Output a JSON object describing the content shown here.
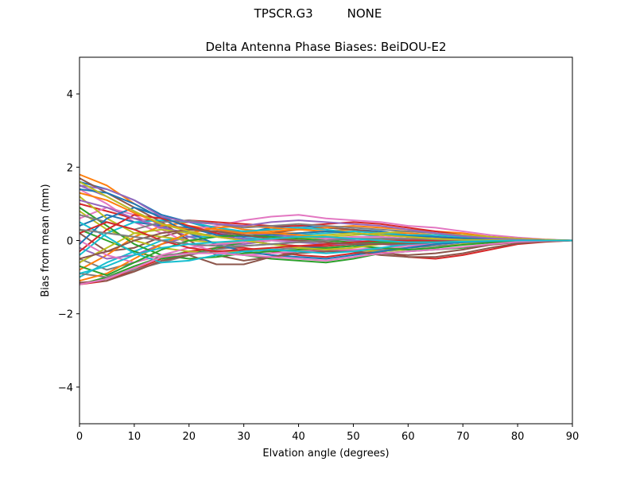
{
  "figure": {
    "suptitle": "TPSCR.G3         NONE"
  },
  "chart_data": {
    "type": "line",
    "title": "Delta Antenna Phase Biases: BeiDOU-E2",
    "xlabel": "Elvation angle (degrees)",
    "ylabel": "Bias from mean (mm)",
    "xlim": [
      0,
      90
    ],
    "ylim": [
      -5,
      5
    ],
    "xticks": [
      "0",
      "10",
      "20",
      "30",
      "40",
      "50",
      "60",
      "70",
      "80",
      "90"
    ],
    "yticks": [
      "−4",
      "−2",
      "0",
      "2",
      "4"
    ],
    "ytick_values": [
      -4,
      -2,
      0,
      2,
      4
    ],
    "grid": false,
    "legend": "none",
    "x": [
      0,
      5,
      10,
      15,
      20,
      25,
      30,
      35,
      40,
      45,
      50,
      55,
      60,
      65,
      70,
      75,
      80,
      85,
      90
    ],
    "series": [
      {
        "color": "#1f77b4",
        "values": [
          1.6,
          1.4,
          1.1,
          0.7,
          0.5,
          0.3,
          0.2,
          0.35,
          0.4,
          0.35,
          0.3,
          0.25,
          0.15,
          0.1,
          0.05,
          0.03,
          0.02,
          0.01,
          0.0
        ]
      },
      {
        "color": "#ff7f0e",
        "values": [
          1.8,
          1.5,
          1.0,
          0.6,
          0.4,
          0.3,
          0.25,
          0.2,
          0.2,
          0.25,
          0.3,
          0.2,
          0.2,
          0.15,
          0.1,
          0.05,
          0.03,
          0.01,
          0.0
        ]
      },
      {
        "color": "#2ca02c",
        "values": [
          -1.2,
          -1.0,
          -0.7,
          -0.45,
          -0.3,
          -0.3,
          -0.4,
          -0.5,
          -0.55,
          -0.6,
          -0.5,
          -0.35,
          -0.3,
          -0.25,
          -0.2,
          -0.1,
          -0.05,
          -0.02,
          0.0
        ]
      },
      {
        "color": "#d62728",
        "values": [
          -1.2,
          -1.1,
          -0.8,
          -0.5,
          -0.3,
          -0.2,
          -0.2,
          -0.3,
          -0.4,
          -0.45,
          -0.35,
          -0.3,
          -0.45,
          -0.5,
          -0.4,
          -0.25,
          -0.1,
          -0.04,
          0.0
        ]
      },
      {
        "color": "#9467bd",
        "values": [
          1.5,
          1.2,
          0.8,
          0.4,
          0.1,
          -0.1,
          -0.1,
          0.0,
          0.1,
          0.1,
          0.0,
          -0.1,
          -0.15,
          -0.1,
          -0.05,
          -0.02,
          0.0,
          0.0,
          0.0
        ]
      },
      {
        "color": "#8c564b",
        "values": [
          0.2,
          -0.3,
          -0.2,
          0.1,
          0.3,
          0.2,
          0.1,
          0.2,
          0.3,
          0.35,
          0.3,
          0.2,
          0.1,
          0.05,
          0.0,
          0.0,
          0.0,
          0.0,
          0.0
        ]
      },
      {
        "color": "#e377c2",
        "values": [
          1.4,
          1.0,
          0.5,
          0.2,
          0.3,
          0.4,
          0.55,
          0.65,
          0.7,
          0.6,
          0.55,
          0.5,
          0.4,
          0.35,
          0.25,
          0.15,
          0.08,
          0.03,
          0.0
        ]
      },
      {
        "color": "#7f7f7f",
        "values": [
          -0.5,
          -0.8,
          -0.6,
          -0.4,
          -0.35,
          -0.3,
          -0.3,
          -0.25,
          -0.2,
          -0.2,
          -0.25,
          -0.25,
          -0.2,
          -0.15,
          -0.1,
          -0.05,
          -0.02,
          0.0,
          0.0
        ]
      },
      {
        "color": "#bcbd22",
        "values": [
          0.8,
          0.3,
          0.0,
          -0.2,
          -0.3,
          -0.35,
          -0.3,
          -0.2,
          -0.15,
          -0.2,
          -0.25,
          -0.3,
          -0.25,
          -0.2,
          -0.1,
          -0.05,
          -0.02,
          0.0,
          0.0
        ]
      },
      {
        "color": "#17becf",
        "values": [
          -1.0,
          -0.6,
          -0.3,
          0.0,
          0.1,
          0.1,
          0.05,
          0.1,
          0.15,
          0.2,
          0.25,
          0.2,
          0.15,
          0.15,
          0.1,
          0.08,
          0.05,
          0.02,
          0.0
        ]
      },
      {
        "color": "#1f77b4",
        "values": [
          0.4,
          0.7,
          0.5,
          0.4,
          0.35,
          0.2,
          0.0,
          -0.1,
          -0.15,
          -0.2,
          -0.15,
          -0.1,
          -0.05,
          -0.05,
          -0.03,
          -0.02,
          0.0,
          0.0,
          0.0
        ]
      },
      {
        "color": "#ff7f0e",
        "values": [
          -0.8,
          -0.4,
          0.1,
          0.4,
          0.5,
          0.45,
          0.3,
          0.25,
          0.3,
          0.35,
          0.4,
          0.35,
          0.3,
          0.25,
          0.2,
          0.1,
          0.05,
          0.02,
          0.0
        ]
      },
      {
        "color": "#2ca02c",
        "values": [
          0.3,
          0.0,
          -0.3,
          -0.5,
          -0.4,
          -0.2,
          -0.05,
          0.05,
          0.0,
          -0.05,
          -0.1,
          -0.05,
          0.0,
          0.0,
          0.0,
          0.0,
          0.0,
          0.0,
          0.0
        ]
      },
      {
        "color": "#d62728",
        "values": [
          1.0,
          0.8,
          0.6,
          0.5,
          0.55,
          0.5,
          0.45,
          0.4,
          0.4,
          0.45,
          0.5,
          0.45,
          0.35,
          0.25,
          0.15,
          0.1,
          0.05,
          0.02,
          0.0
        ]
      },
      {
        "color": "#9467bd",
        "values": [
          -0.2,
          -0.5,
          -0.4,
          -0.1,
          0.1,
          0.2,
          0.2,
          0.15,
          0.1,
          0.05,
          0.0,
          -0.05,
          -0.1,
          -0.1,
          -0.05,
          -0.02,
          0.0,
          0.0,
          0.0
        ]
      },
      {
        "color": "#8c564b",
        "values": [
          1.7,
          1.3,
          0.9,
          0.5,
          0.0,
          -0.4,
          -0.55,
          -0.45,
          -0.3,
          -0.25,
          -0.3,
          -0.35,
          -0.4,
          -0.35,
          -0.25,
          -0.12,
          -0.05,
          -0.02,
          0.0
        ]
      },
      {
        "color": "#e377c2",
        "values": [
          0.6,
          0.9,
          0.7,
          0.3,
          -0.1,
          -0.3,
          -0.4,
          -0.35,
          -0.3,
          -0.3,
          -0.25,
          -0.2,
          -0.15,
          -0.1,
          -0.05,
          -0.02,
          0.0,
          0.0,
          0.0
        ]
      },
      {
        "color": "#7f7f7f",
        "values": [
          -0.9,
          -1.0,
          -0.8,
          -0.6,
          -0.4,
          -0.25,
          -0.15,
          -0.1,
          -0.05,
          0.0,
          0.05,
          0.05,
          0.05,
          0.03,
          0.02,
          0.01,
          0.0,
          0.0,
          0.0
        ]
      },
      {
        "color": "#bcbd22",
        "values": [
          1.2,
          0.6,
          0.2,
          0.1,
          0.0,
          -0.05,
          -0.05,
          0.0,
          0.05,
          0.1,
          0.15,
          0.2,
          0.25,
          0.2,
          0.15,
          0.1,
          0.05,
          0.02,
          0.0
        ]
      },
      {
        "color": "#17becf",
        "values": [
          -0.4,
          0.2,
          0.5,
          0.55,
          0.5,
          0.35,
          0.25,
          0.3,
          0.35,
          0.3,
          0.2,
          0.1,
          0.0,
          -0.05,
          -0.05,
          -0.02,
          0.0,
          0.0,
          0.0
        ]
      },
      {
        "color": "#1f77b4",
        "values": [
          1.4,
          1.3,
          1.0,
          0.6,
          0.2,
          -0.1,
          -0.3,
          -0.4,
          -0.45,
          -0.5,
          -0.4,
          -0.3,
          -0.2,
          -0.1,
          -0.05,
          -0.02,
          0.0,
          0.0,
          0.0
        ]
      },
      {
        "color": "#ff7f0e",
        "values": [
          -1.1,
          -0.9,
          -0.5,
          -0.1,
          0.2,
          0.35,
          0.4,
          0.35,
          0.3,
          0.25,
          0.2,
          0.15,
          0.1,
          0.05,
          0.02,
          0.01,
          0.0,
          0.0,
          0.0
        ]
      },
      {
        "color": "#2ca02c",
        "values": [
          0.9,
          0.4,
          -0.1,
          -0.4,
          -0.5,
          -0.45,
          -0.35,
          -0.3,
          -0.25,
          -0.2,
          -0.15,
          -0.2,
          -0.25,
          -0.2,
          -0.12,
          -0.06,
          -0.02,
          0.0,
          0.0
        ]
      },
      {
        "color": "#d62728",
        "values": [
          -0.3,
          0.3,
          0.7,
          0.6,
          0.4,
          0.2,
          0.0,
          -0.1,
          -0.15,
          -0.15,
          -0.1,
          -0.05,
          0.0,
          0.05,
          0.05,
          0.03,
          0.01,
          0.0,
          0.0
        ]
      },
      {
        "color": "#9467bd",
        "values": [
          1.1,
          0.9,
          0.6,
          0.35,
          0.2,
          0.1,
          0.05,
          0.0,
          -0.05,
          -0.1,
          -0.1,
          -0.05,
          0.0,
          0.0,
          0.0,
          0.0,
          0.0,
          0.0,
          0.0
        ]
      },
      {
        "color": "#8c564b",
        "values": [
          -1.15,
          -1.1,
          -0.85,
          -0.55,
          -0.4,
          -0.65,
          -0.65,
          -0.45,
          -0.35,
          -0.3,
          -0.3,
          -0.4,
          -0.45,
          -0.45,
          -0.35,
          -0.2,
          -0.08,
          -0.03,
          0.0
        ]
      },
      {
        "color": "#e377c2",
        "values": [
          0.0,
          -0.4,
          -0.6,
          -0.4,
          -0.2,
          -0.1,
          -0.05,
          0.0,
          0.0,
          0.05,
          0.1,
          0.1,
          0.05,
          0.02,
          0.01,
          0.0,
          0.0,
          0.0,
          0.0
        ]
      },
      {
        "color": "#7f7f7f",
        "values": [
          0.7,
          0.5,
          0.3,
          0.5,
          0.55,
          0.45,
          0.35,
          0.4,
          0.45,
          0.4,
          0.35,
          0.3,
          0.25,
          0.2,
          0.12,
          0.06,
          0.02,
          0.0,
          0.0
        ]
      },
      {
        "color": "#bcbd22",
        "values": [
          -0.6,
          -0.2,
          0.2,
          0.3,
          0.2,
          0.1,
          0.0,
          -0.1,
          -0.2,
          -0.25,
          -0.2,
          -0.1,
          -0.05,
          0.0,
          0.0,
          0.0,
          0.0,
          0.0,
          0.0
        ]
      },
      {
        "color": "#17becf",
        "values": [
          0.5,
          0.1,
          -0.35,
          -0.6,
          -0.55,
          -0.4,
          -0.3,
          -0.25,
          -0.3,
          -0.35,
          -0.3,
          -0.2,
          -0.1,
          -0.05,
          -0.02,
          0.0,
          0.0,
          0.0,
          0.0
        ]
      },
      {
        "color": "#1f77b4",
        "values": [
          -0.1,
          0.6,
          0.9,
          0.65,
          0.35,
          0.15,
          0.1,
          0.15,
          0.2,
          0.25,
          0.2,
          0.15,
          0.12,
          0.1,
          0.06,
          0.03,
          0.01,
          0.0,
          0.0
        ]
      },
      {
        "color": "#ff7f0e",
        "values": [
          1.3,
          1.1,
          0.75,
          0.45,
          0.3,
          0.25,
          0.2,
          0.2,
          0.15,
          0.1,
          0.05,
          0.0,
          -0.05,
          -0.05,
          -0.02,
          0.0,
          0.0,
          0.0,
          0.0
        ]
      },
      {
        "color": "#2ca02c",
        "values": [
          -0.7,
          -0.95,
          -0.6,
          -0.25,
          0.0,
          0.1,
          0.15,
          0.1,
          0.05,
          0.0,
          -0.05,
          -0.05,
          -0.03,
          -0.02,
          0.0,
          0.0,
          0.0,
          0.0,
          0.0
        ]
      },
      {
        "color": "#d62728",
        "values": [
          0.2,
          0.5,
          0.3,
          0.0,
          -0.2,
          -0.3,
          -0.25,
          -0.2,
          -0.15,
          -0.1,
          -0.05,
          0.0,
          0.0,
          0.0,
          0.0,
          0.0,
          0.0,
          0.0,
          0.0
        ]
      },
      {
        "color": "#9467bd",
        "values": [
          1.5,
          1.4,
          1.1,
          0.65,
          0.5,
          0.45,
          0.4,
          0.5,
          0.55,
          0.5,
          0.45,
          0.4,
          0.3,
          0.2,
          0.12,
          0.06,
          0.02,
          0.0,
          0.0
        ]
      },
      {
        "color": "#8c564b",
        "values": [
          -0.5,
          -0.3,
          0.0,
          0.2,
          0.3,
          0.25,
          0.15,
          0.05,
          0.0,
          -0.05,
          -0.1,
          -0.1,
          -0.08,
          -0.05,
          -0.02,
          0.0,
          0.0,
          0.0,
          0.0
        ]
      },
      {
        "color": "#e377c2",
        "values": [
          -1.2,
          -1.05,
          -0.75,
          -0.45,
          -0.35,
          -0.35,
          -0.4,
          -0.45,
          -0.5,
          -0.55,
          -0.45,
          -0.35,
          -0.3,
          -0.25,
          -0.18,
          -0.1,
          -0.04,
          -0.01,
          0.0
        ]
      },
      {
        "color": "#7f7f7f",
        "values": [
          0.3,
          0.2,
          0.1,
          0.0,
          -0.1,
          -0.15,
          -0.15,
          -0.1,
          -0.05,
          0.0,
          0.05,
          0.05,
          0.05,
          0.03,
          0.01,
          0.0,
          0.0,
          0.0,
          0.0
        ]
      },
      {
        "color": "#bcbd22",
        "values": [
          1.6,
          1.2,
          0.8,
          0.45,
          0.25,
          0.1,
          0.0,
          0.05,
          0.1,
          0.15,
          0.2,
          0.15,
          0.1,
          0.05,
          0.02,
          0.01,
          0.0,
          0.0,
          0.0
        ]
      },
      {
        "color": "#17becf",
        "values": [
          -0.9,
          -0.7,
          -0.4,
          -0.2,
          -0.1,
          -0.05,
          0.0,
          0.05,
          0.1,
          0.1,
          0.05,
          0.0,
          -0.05,
          -0.05,
          -0.03,
          -0.01,
          0.0,
          0.0,
          0.0
        ]
      }
    ]
  }
}
